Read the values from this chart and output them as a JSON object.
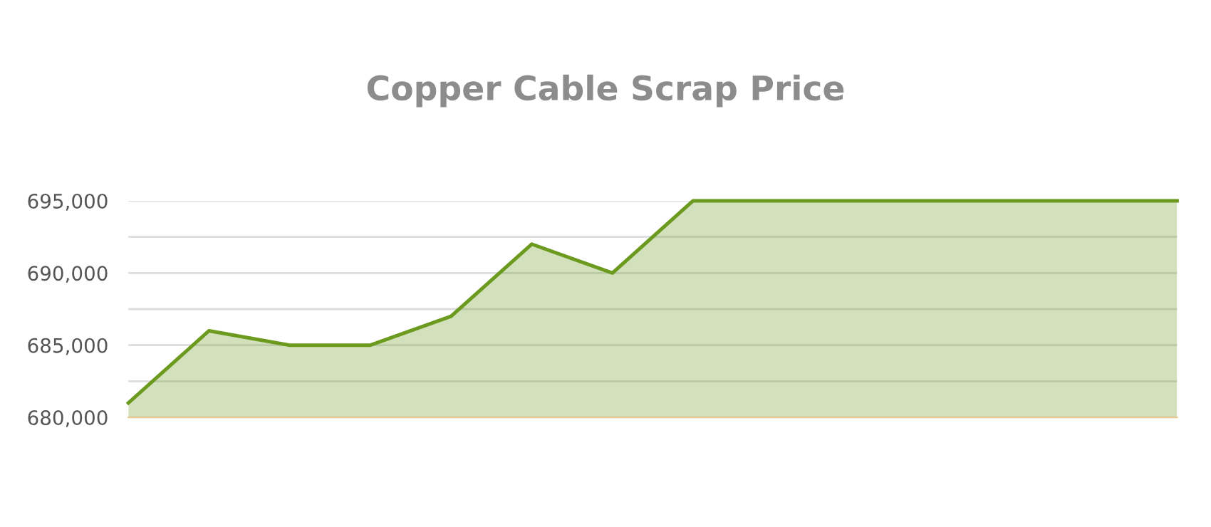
{
  "chart_data": {
    "type": "area",
    "title": "Copper Cable Scrap Price",
    "categories": [
      null,
      null,
      null,
      null,
      null,
      null,
      null,
      null,
      null,
      null,
      null,
      null,
      null,
      null
    ],
    "series": [
      {
        "color": "#6b9a1f",
        "values": [
          681000,
          686000,
          685000,
          685000,
          687000,
          692000,
          690000,
          695000,
          695000,
          695000,
          695000,
          695000,
          695000,
          695000
        ]
      }
    ],
    "ylim": [
      680000,
      695000
    ],
    "yticks": [
      {
        "value": 680000,
        "label": "680,000"
      },
      {
        "value": 682500,
        "label": null
      },
      {
        "value": 685000,
        "label": "685,000"
      },
      {
        "value": 687500,
        "label": null
      },
      {
        "value": 690000,
        "label": "690,000"
      },
      {
        "value": 692500,
        "label": null
      },
      {
        "value": 695000,
        "label": "695,000"
      }
    ],
    "grid": "y",
    "tick_labels": "y",
    "marker": "none",
    "line_style": "solid"
  }
}
